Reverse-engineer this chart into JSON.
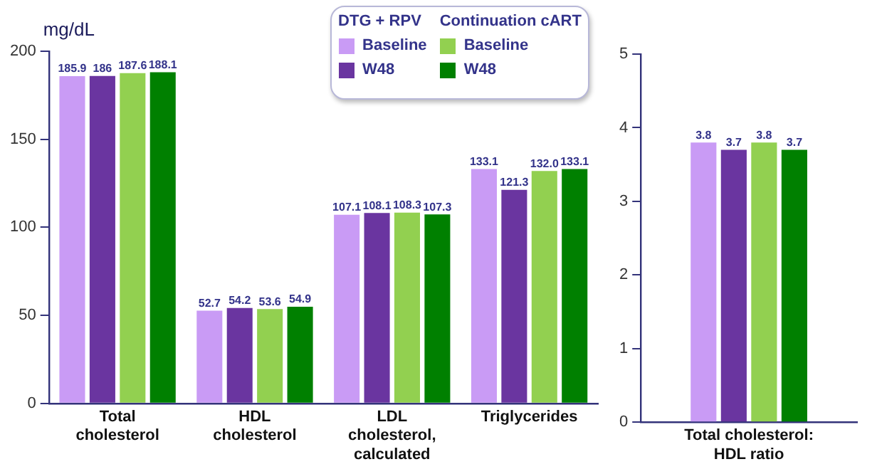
{
  "chart_data": [
    {
      "type": "bar",
      "ylabel": "mg/dL",
      "categories": [
        "Total cholesterol",
        "HDL cholesterol",
        "LDL cholesterol, calculated",
        "Triglycerides"
      ],
      "series": [
        {
          "name": "Baseline",
          "color": "#c99bf5",
          "values": [
            185.9,
            52.7,
            107.1,
            133.1
          ],
          "value_labels": [
            "185.9",
            "52.7",
            "107.1",
            "133.1"
          ]
        },
        {
          "name": "W48",
          "color": "#6a35a0",
          "values": [
            186,
            54.2,
            108.1,
            121.3
          ],
          "value_labels": [
            "186",
            "54.2",
            "108.1",
            "121.3"
          ]
        },
        {
          "name": "Baseline",
          "color": "#92d050",
          "values": [
            187.6,
            53.6,
            108.3,
            132.0
          ],
          "value_labels": [
            "187.6",
            "53.6",
            "108.3",
            "132.0"
          ]
        },
        {
          "name": "W48",
          "color": "#008000",
          "values": [
            188.1,
            54.9,
            107.3,
            133.1
          ],
          "value_labels": [
            "188.1",
            "54.9",
            "107.3",
            "133.1"
          ]
        }
      ],
      "ylim": [
        0,
        200
      ],
      "yticks": [
        0,
        50,
        100,
        150,
        200
      ],
      "grid": false,
      "legend": "top",
      "annotations": [
        "DTG + RPV",
        "Continuation cART"
      ]
    },
    {
      "type": "bar",
      "categories": [
        "Total cholesterol: HDL ratio"
      ],
      "series": [
        {
          "color": "#c99bf5",
          "values": [
            3.8
          ],
          "value_labels": [
            "3.8"
          ]
        },
        {
          "color": "#6a35a0",
          "values": [
            3.7
          ],
          "value_labels": [
            "3.7"
          ]
        },
        {
          "color": "#92d050",
          "values": [
            3.8
          ],
          "value_labels": [
            "3.8"
          ]
        },
        {
          "color": "#008000",
          "values": [
            3.7
          ],
          "value_labels": [
            "3.7"
          ]
        }
      ],
      "ylim": [
        0,
        5
      ],
      "yticks": [
        0,
        1,
        2,
        3,
        4,
        5
      ],
      "grid": false
    }
  ]
}
